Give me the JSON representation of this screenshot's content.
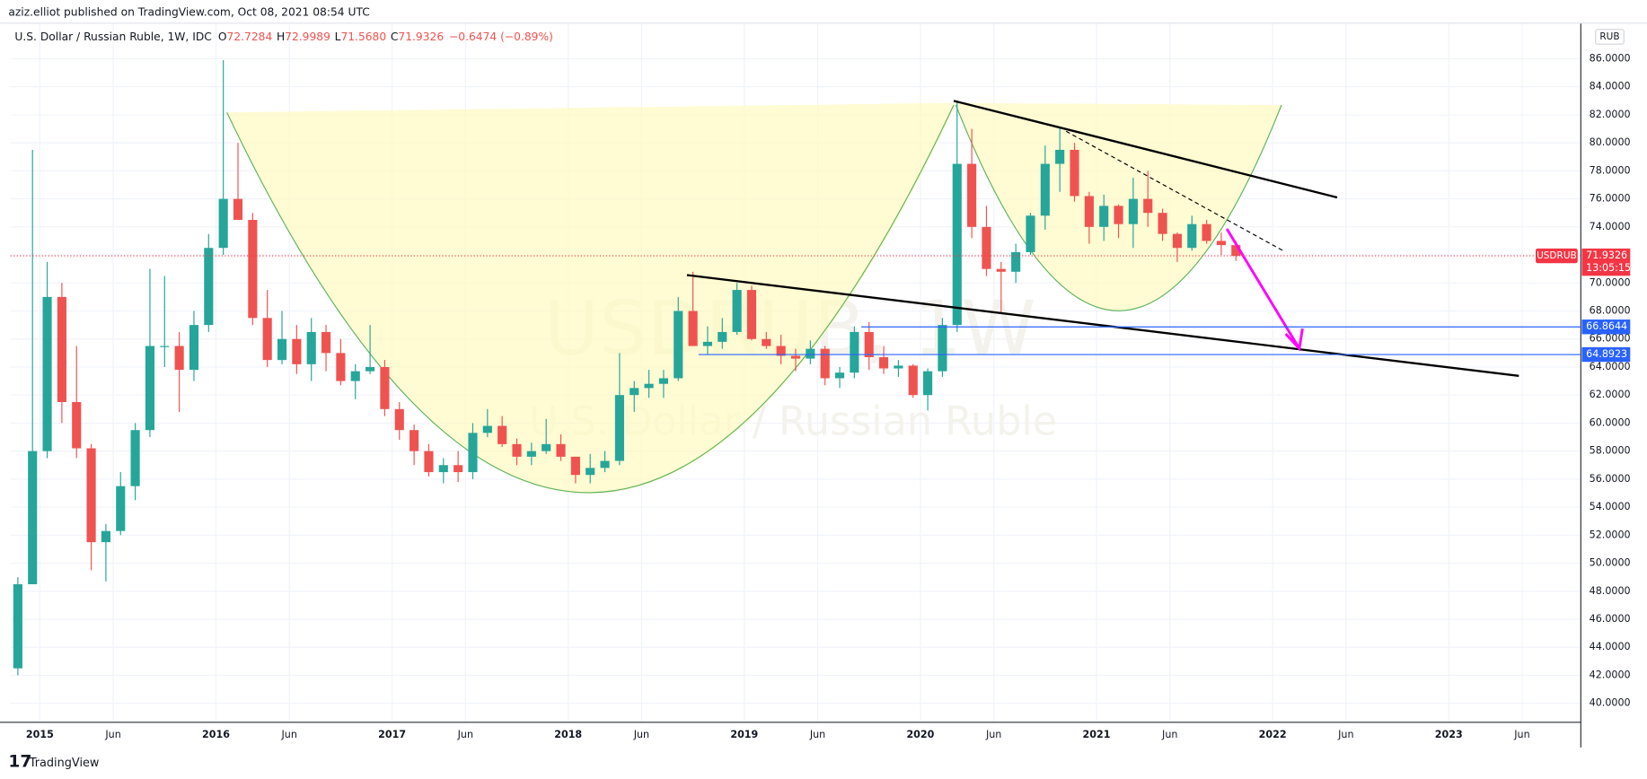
{
  "header": "aziz.elliot published on TradingView.com, Oct 08, 2021 08:54 UTC",
  "footer": "TradingView",
  "chart_data": {
    "type": "candlestick",
    "legend": {
      "symbol": "U.S. Dollar / Russian Ruble, 1W, IDC",
      "open_label": "O",
      "open": 72.7284,
      "high_label": "H",
      "high": 72.9989,
      "low_label": "L",
      "low": 71.568,
      "low_text": "71.5680",
      "close_label": "C",
      "close": 71.9326,
      "change": "−0.6474 (−0.89%)"
    },
    "watermark": {
      "symbol": "USDRUB, 1W",
      "name": "U.S. Dollar / Russian Ruble"
    },
    "currency": "RUB",
    "up_color": "#26a69a",
    "down_color": "#ef5350",
    "x": [
      "2014-11",
      "2014-12",
      "2015-01",
      "2015-02",
      "2015-03",
      "2015-04",
      "2015-05",
      "2015-06",
      "2015-07",
      "2015-08",
      "2015-09",
      "2015-10",
      "2015-11",
      "2015-12",
      "2016-01",
      "2016-02",
      "2016-03",
      "2016-04",
      "2016-05",
      "2016-06",
      "2016-07",
      "2016-08",
      "2016-09",
      "2016-10",
      "2016-11",
      "2016-12",
      "2017-01",
      "2017-02",
      "2017-03",
      "2017-04",
      "2017-05",
      "2017-06",
      "2017-07",
      "2017-08",
      "2017-09",
      "2017-10",
      "2017-11",
      "2017-12",
      "2018-01",
      "2018-02",
      "2018-03",
      "2018-04",
      "2018-05",
      "2018-06",
      "2018-07",
      "2018-08",
      "2018-09",
      "2018-10",
      "2018-11",
      "2018-12",
      "2019-01",
      "2019-02",
      "2019-03",
      "2019-04",
      "2019-05",
      "2019-06",
      "2019-07",
      "2019-08",
      "2019-09",
      "2019-10",
      "2019-11",
      "2019-12",
      "2020-01",
      "2020-02",
      "2020-03",
      "2020-04",
      "2020-05",
      "2020-06",
      "2020-07",
      "2020-08",
      "2020-09",
      "2020-10",
      "2020-11",
      "2020-12",
      "2021-01",
      "2021-02",
      "2021-03",
      "2021-04",
      "2021-05",
      "2021-06",
      "2021-07",
      "2021-08",
      "2021-09",
      "2021-10"
    ],
    "open": [
      42.5,
      48.5,
      58.0,
      69.0,
      61.5,
      58.2,
      51.5,
      52.3,
      55.5,
      59.5,
      65.5,
      65.5,
      63.8,
      67.0,
      72.5,
      76.0,
      74.5,
      67.5,
      64.5,
      66.0,
      64.2,
      66.5,
      65.0,
      63.0,
      63.7,
      64.0,
      61.0,
      59.5,
      58.0,
      56.5,
      57.0,
      56.5,
      59.3,
      59.8,
      58.5,
      57.6,
      58.0,
      58.5,
      57.6,
      56.3,
      56.8,
      57.3,
      62.0,
      62.5,
      62.8,
      63.2,
      68.0,
      65.5,
      65.8,
      66.5,
      69.5,
      66.0,
      65.5,
      64.8,
      64.6,
      65.3,
      63.2,
      63.6,
      66.5,
      64.7,
      63.9,
      64.1,
      62.0,
      63.7,
      67.0,
      78.5,
      74.0,
      71.0,
      70.8,
      72.2,
      74.8,
      78.5,
      79.5,
      76.2,
      74.0,
      75.5,
      74.2,
      76.0,
      75.0,
      73.5,
      72.5,
      74.2,
      73.0,
      72.7
    ],
    "high": [
      49.0,
      79.5,
      71.5,
      70.0,
      65.5,
      58.5,
      52.8,
      56.5,
      60.0,
      71.0,
      70.5,
      66.5,
      68.0,
      73.5,
      85.9,
      80.0,
      75.0,
      69.5,
      68.0,
      67.0,
      67.5,
      67.0,
      66.0,
      64.2,
      67.0,
      64.5,
      61.5,
      59.9,
      58.5,
      57.5,
      58.0,
      60.0,
      61.0,
      60.5,
      58.9,
      58.6,
      60.3,
      59.2,
      57.6,
      57.8,
      58.0,
      65.0,
      63.0,
      63.8,
      63.8,
      69.0,
      70.8,
      66.9,
      67.5,
      70.0,
      69.8,
      66.5,
      66.3,
      65.3,
      65.9,
      65.5,
      64.0,
      66.9,
      67.2,
      65.5,
      64.5,
      64.2,
      63.9,
      67.5,
      82.9,
      81.0,
      75.5,
      71.5,
      72.8,
      75.0,
      79.8,
      81.0,
      80.0,
      76.5,
      76.3,
      75.6,
      77.5,
      78.0,
      75.3,
      73.6,
      74.8,
      74.5,
      73.6,
      72.9989
    ],
    "low": [
      42.0,
      48.5,
      57.5,
      60.0,
      57.5,
      49.5,
      48.7,
      52.0,
      54.5,
      59.0,
      64.0,
      60.8,
      63.0,
      66.5,
      72.0,
      74.5,
      67.0,
      64.0,
      64.2,
      63.5,
      63.0,
      63.7,
      62.7,
      61.7,
      63.5,
      60.5,
      58.8,
      57.0,
      56.2,
      55.7,
      55.8,
      56.0,
      59.0,
      58.3,
      57.0,
      57.0,
      57.8,
      57.3,
      55.7,
      55.7,
      56.5,
      57.0,
      60.8,
      61.8,
      61.8,
      63.0,
      65.8,
      64.9,
      65.3,
      66.3,
      65.9,
      65.3,
      64.2,
      63.7,
      64.2,
      62.7,
      62.5,
      63.2,
      63.8,
      63.5,
      63.3,
      61.8,
      60.9,
      63.3,
      66.5,
      73.2,
      70.5,
      67.8,
      70.0,
      72.0,
      73.8,
      76.5,
      75.8,
      72.8,
      73.0,
      73.2,
      72.5,
      74.0,
      73.0,
      71.5,
      72.3,
      72.8,
      72.0,
      71.568
    ],
    "close": [
      48.5,
      58.0,
      69.0,
      61.5,
      58.2,
      51.5,
      52.3,
      55.5,
      59.5,
      65.5,
      65.5,
      63.8,
      67.0,
      72.5,
      76.0,
      74.5,
      67.5,
      64.5,
      66.0,
      64.2,
      66.5,
      65.0,
      63.0,
      63.7,
      64.0,
      61.0,
      59.5,
      58.0,
      56.5,
      57.0,
      56.5,
      59.3,
      59.8,
      58.5,
      57.6,
      58.0,
      58.5,
      57.6,
      56.3,
      56.8,
      57.3,
      62.0,
      62.5,
      62.8,
      63.2,
      68.0,
      65.5,
      65.8,
      66.5,
      69.5,
      66.0,
      65.5,
      64.8,
      64.6,
      65.3,
      63.2,
      63.6,
      66.5,
      64.7,
      63.9,
      64.1,
      62.0,
      63.7,
      67.0,
      78.5,
      74.0,
      71.0,
      70.8,
      72.2,
      74.8,
      78.5,
      79.5,
      76.2,
      74.0,
      75.5,
      74.2,
      76.0,
      75.0,
      73.5,
      72.5,
      74.2,
      73.0,
      72.7,
      71.9326
    ],
    "xlim": [
      "2014-11",
      "2023-10"
    ],
    "xticks": [
      {
        "value": "2015-01",
        "label": "2015"
      },
      {
        "value": "2015-06",
        "label": "Jun"
      },
      {
        "value": "2016-01",
        "label": "2016"
      },
      {
        "value": "2016-06",
        "label": "Jun"
      },
      {
        "value": "2017-01",
        "label": "2017"
      },
      {
        "value": "2017-06",
        "label": "Jun"
      },
      {
        "value": "2018-01",
        "label": "2018"
      },
      {
        "value": "2018-06",
        "label": "Jun"
      },
      {
        "value": "2019-01",
        "label": "2019"
      },
      {
        "value": "2019-06",
        "label": "Jun"
      },
      {
        "value": "2020-01",
        "label": "2020"
      },
      {
        "value": "2020-06",
        "label": "Jun"
      },
      {
        "value": "2021-01",
        "label": "2021"
      },
      {
        "value": "2021-06",
        "label": "Jun"
      },
      {
        "value": "2022-01",
        "label": "2022"
      },
      {
        "value": "2022-06",
        "label": "Jun"
      },
      {
        "value": "2023-01",
        "label": "2023"
      },
      {
        "value": "2023-06",
        "label": "Jun"
      }
    ],
    "ylim": [
      38.65,
      88.54
    ],
    "yticks": [
      {
        "value": 40,
        "label": "40.0000"
      },
      {
        "value": 42,
        "label": "42.0000"
      },
      {
        "value": 44,
        "label": "44.0000"
      },
      {
        "value": 46,
        "label": "46.0000"
      },
      {
        "value": 48,
        "label": "48.0000"
      },
      {
        "value": 50,
        "label": "50.0000"
      },
      {
        "value": 52,
        "label": "52.0000"
      },
      {
        "value": 54,
        "label": "54.0000"
      },
      {
        "value": 56,
        "label": "56.0000"
      },
      {
        "value": 58,
        "label": "58.0000"
      },
      {
        "value": 60,
        "label": "60.0000"
      },
      {
        "value": 62,
        "label": "62.0000"
      },
      {
        "value": 64,
        "label": "64.0000"
      },
      {
        "value": 66,
        "label": "66.0000"
      },
      {
        "value": 68,
        "label": "68.0000"
      },
      {
        "value": 70,
        "label": "70.0000"
      },
      {
        "value": 72,
        "label": "72.0000"
      },
      {
        "value": 74,
        "label": "74.0000"
      },
      {
        "value": 76,
        "label": "76.0000"
      },
      {
        "value": 78,
        "label": "78.0000"
      },
      {
        "value": 80,
        "label": "80.0000"
      },
      {
        "value": 82,
        "label": "82.0000"
      },
      {
        "value": 84,
        "label": "84.0000"
      },
      {
        "value": 86,
        "label": "86.0000"
      }
    ],
    "grid": true,
    "horizontal_lines": [
      {
        "value": 66.8644,
        "color": "#2962ff"
      },
      {
        "value": 64.8923,
        "color": "#2962ff"
      }
    ],
    "last_price": {
      "symbol": "USDRUB",
      "value": 71.9326,
      "countdown": "13:05:15",
      "color": "#f23645"
    }
  }
}
